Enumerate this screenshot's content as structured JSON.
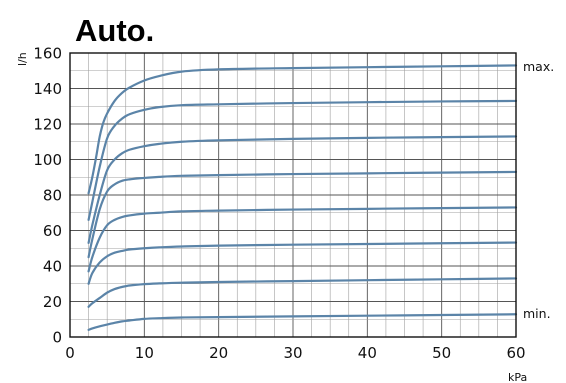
{
  "chart_data": {
    "type": "line",
    "title": "Auto.",
    "xlabel": "kPa",
    "ylabel": "l/h",
    "xlim": [
      0,
      60
    ],
    "ylim": [
      0,
      160
    ],
    "x_ticks": [
      0,
      10,
      20,
      30,
      40,
      50,
      60
    ],
    "y_ticks": [
      0,
      20,
      40,
      60,
      80,
      100,
      120,
      140,
      160
    ],
    "grid": true,
    "annotations": {
      "max": "max.",
      "min": "min."
    },
    "series": [
      {
        "x": [
          2.5,
          3,
          4,
          5,
          6,
          7,
          8,
          10,
          12,
          15,
          20,
          30,
          40,
          50,
          60
        ],
        "y": [
          4,
          4.8,
          6,
          7,
          8,
          8.8,
          9.3,
          10.2,
          10.6,
          11,
          11.2,
          11.6,
          12,
          12.4,
          12.8
        ]
      },
      {
        "x": [
          2.5,
          3,
          4,
          5,
          6,
          7,
          8,
          10,
          12,
          15,
          20,
          30,
          40,
          50,
          60
        ],
        "y": [
          17,
          19,
          22,
          25,
          27,
          28.2,
          29,
          29.8,
          30.2,
          30.6,
          31,
          31.5,
          32,
          32.5,
          33
        ]
      },
      {
        "x": [
          2.5,
          3,
          4,
          5,
          6,
          7,
          8,
          10,
          12,
          15,
          20,
          30,
          40,
          50,
          60
        ],
        "y": [
          30,
          36,
          42,
          45.5,
          47.5,
          48.5,
          49.3,
          50,
          50.5,
          51,
          51.5,
          52,
          52.4,
          52.8,
          53.2
        ]
      },
      {
        "x": [
          2.5,
          3,
          4,
          5,
          6,
          7,
          8,
          10,
          12,
          15,
          20,
          30,
          40,
          50,
          60
        ],
        "y": [
          37,
          45,
          56,
          63,
          66,
          67.6,
          68.5,
          69.5,
          70,
          70.8,
          71.2,
          71.8,
          72.2,
          72.6,
          73
        ]
      },
      {
        "x": [
          2.5,
          3,
          4,
          5,
          6,
          7,
          8,
          10,
          12,
          15,
          20,
          30,
          40,
          50,
          60
        ],
        "y": [
          45,
          55,
          72,
          82,
          86,
          88,
          88.8,
          89.6,
          90.2,
          90.8,
          91.2,
          91.8,
          92.2,
          92.6,
          93
        ]
      },
      {
        "x": [
          2.5,
          3,
          4,
          5,
          6,
          7,
          8,
          10,
          12,
          15,
          20,
          30,
          40,
          50,
          60
        ],
        "y": [
          53,
          63,
          80,
          94,
          100,
          103.5,
          105.5,
          107.5,
          108.8,
          110,
          110.8,
          111.6,
          112.2,
          112.6,
          113
        ]
      },
      {
        "x": [
          2.5,
          3,
          4,
          5,
          6,
          7,
          8,
          10,
          12,
          15,
          20,
          30,
          40,
          50,
          60
        ],
        "y": [
          66,
          76,
          96,
          112,
          119,
          123,
          125.5,
          128,
          129.5,
          130.6,
          131.1,
          131.8,
          132.3,
          132.7,
          133
        ]
      },
      {
        "x": [
          2.5,
          3,
          3.5,
          4,
          4.5,
          5,
          6,
          7,
          8,
          10,
          12,
          15,
          20,
          30,
          40,
          50,
          60
        ],
        "y": [
          81,
          90,
          101,
          113,
          121,
          126,
          133,
          137.5,
          140.5,
          144.5,
          147,
          149.5,
          150.8,
          151.5,
          152,
          152.5,
          153
        ]
      }
    ]
  }
}
